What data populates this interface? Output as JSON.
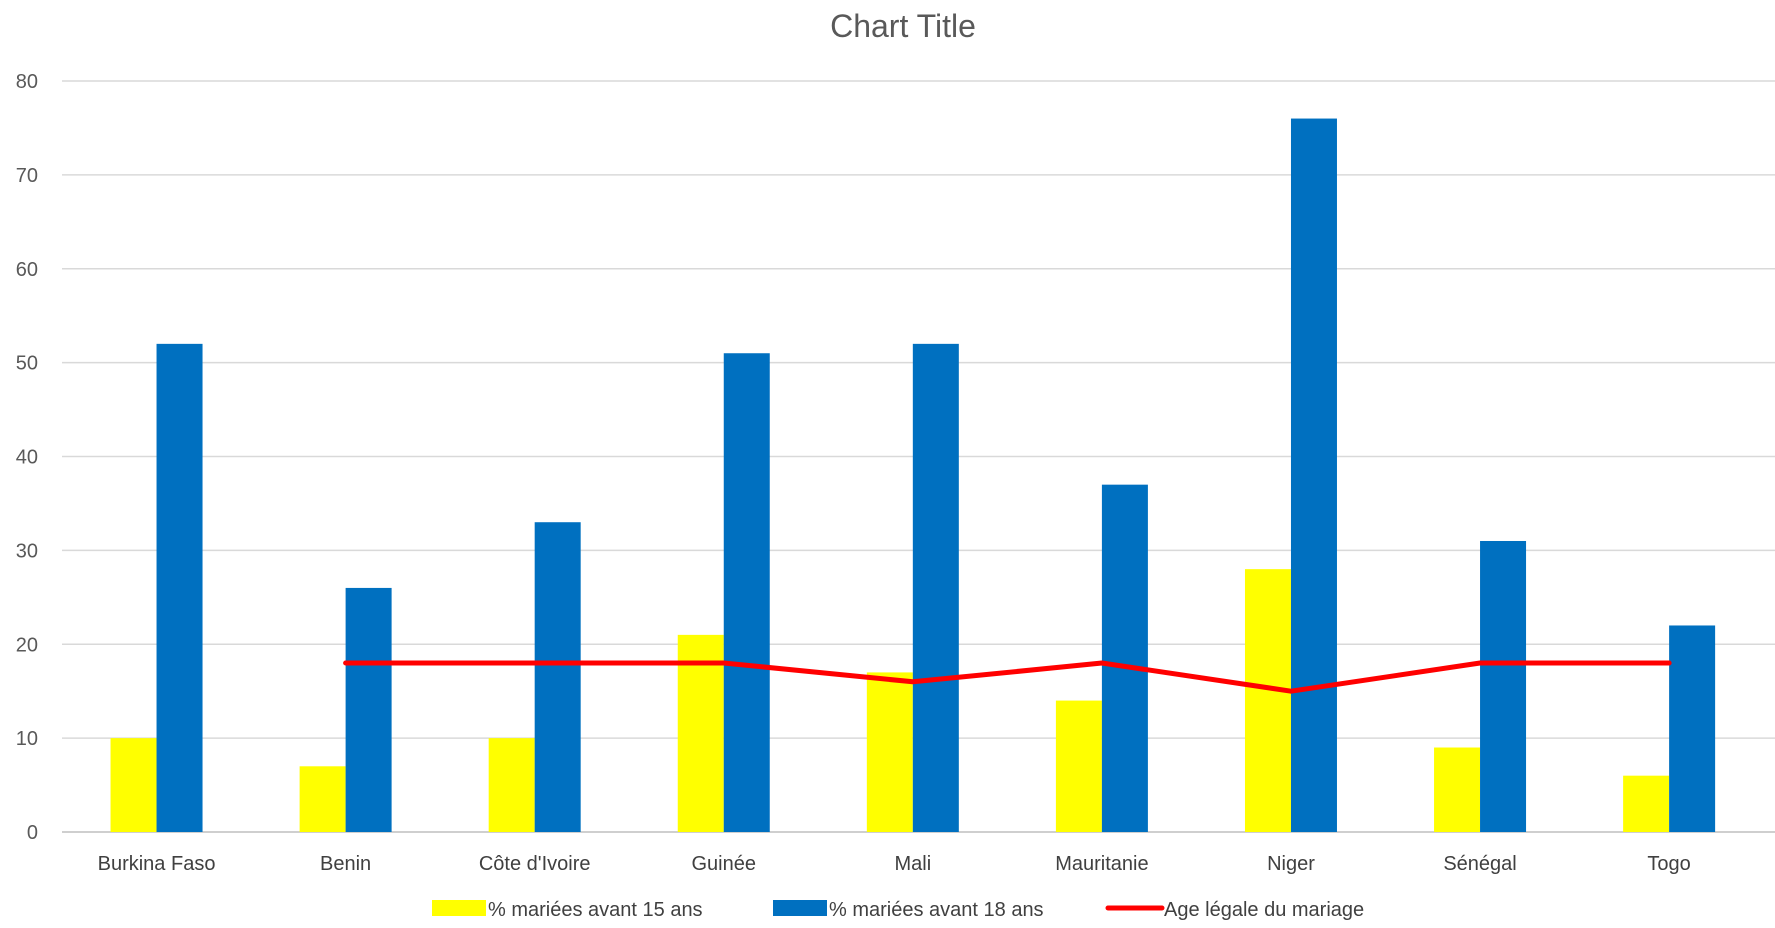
{
  "chart_data": {
    "type": "bar",
    "title": "Chart Title",
    "xlabel": "",
    "ylabel": "",
    "ylim": [
      0,
      80
    ],
    "yticks": [
      0,
      10,
      20,
      30,
      40,
      50,
      60,
      70,
      80
    ],
    "grid": true,
    "legend_position": "bottom",
    "categories": [
      "Burkina Faso",
      "Benin",
      "Côte d'Ivoire",
      "Guinée",
      "Mali",
      "Mauritanie",
      "Niger",
      "Sénégal",
      "Togo"
    ],
    "series": [
      {
        "name": "%  mariées avant 15 ans",
        "type": "bar",
        "color": "#ffff00",
        "values": [
          10,
          7,
          10,
          21,
          17,
          14,
          28,
          9,
          6
        ]
      },
      {
        "name": "% mariées avant 18 ans",
        "type": "bar",
        "color": "#0070c0",
        "values": [
          52,
          26,
          33,
          51,
          52,
          37,
          76,
          31,
          22
        ]
      },
      {
        "name": "Age légale  du mariage",
        "type": "line",
        "color": "#ff0000",
        "values": [
          null,
          18,
          18,
          18,
          16,
          18,
          15,
          18,
          18
        ]
      }
    ]
  }
}
